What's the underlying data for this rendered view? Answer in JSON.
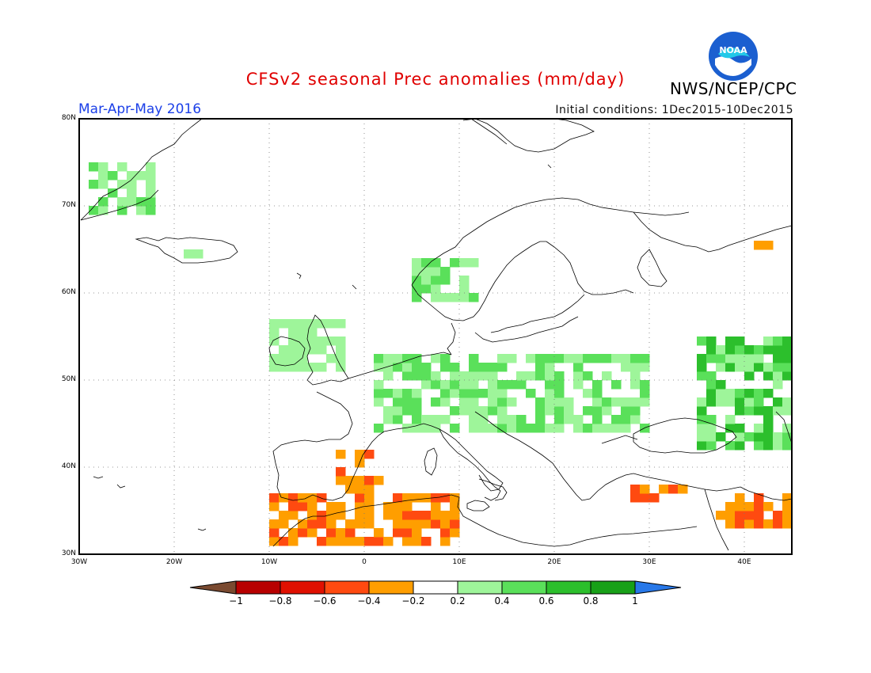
{
  "title": "CFSv2 seasonal Prec anomalies (mm/day)",
  "season": "Mar-Apr-May 2016",
  "initial_conditions": "Initial conditions: 1Dec2015-10Dec2015",
  "agency": "NWS/NCEP/CPC",
  "logo_text": "NOAA",
  "map": {
    "lon_range": [
      -30,
      45
    ],
    "lat_range": [
      30,
      80
    ],
    "lat_labels": [
      "80N",
      "70N",
      "60N",
      "50N",
      "40N",
      "30N"
    ],
    "lon_labels": [
      "30W",
      "20W",
      "10W",
      "0",
      "10E",
      "20E",
      "30E",
      "40E"
    ],
    "grid": "dotted, every 10 degrees"
  },
  "colorbar": {
    "labels": [
      "-1",
      "-0.8",
      "-0.6",
      "-0.4",
      "-0.2",
      "0.2",
      "0.4",
      "0.6",
      "0.8",
      "1"
    ],
    "colors": [
      "#7a4a30",
      "#b80000",
      "#e01000",
      "#ff4a10",
      "#ff9e00",
      "#ffffff",
      "#9ef59a",
      "#5ae05a",
      "#2cbf2c",
      "#18a018",
      "#2878e8"
    ],
    "bins": [
      "< -1",
      "-1 to -0.8",
      "-0.8 to -0.6",
      "-0.6 to -0.4",
      "-0.4 to -0.2",
      "-0.2 to 0.2",
      "0.2 to 0.4",
      "0.4 to 0.6",
      "0.6 to 0.8",
      "0.8 to 1",
      "> 1"
    ]
  },
  "anomaly_regions": [
    {
      "area": "Greenland east coast",
      "lon": [
        -29,
        -22
      ],
      "lat": [
        69,
        75
      ],
      "class": "0.2 to 0.6"
    },
    {
      "area": "Iceland",
      "lon": [
        -20,
        -17
      ],
      "lat": [
        64,
        65
      ],
      "class": "0.2 to 0.4"
    },
    {
      "area": "Western Norway",
      "lon": [
        5,
        12
      ],
      "lat": [
        59,
        64
      ],
      "class": "0.2 to 0.6"
    },
    {
      "area": "Ireland and Scotland",
      "lon": [
        -10,
        -2
      ],
      "lat": [
        51,
        57
      ],
      "class": "0.2 to 0.4"
    },
    {
      "area": "Central Europe",
      "lon": [
        1,
        30
      ],
      "lat": [
        44,
        53
      ],
      "class": "0.2 to 0.6"
    },
    {
      "area": "Western Russia / Caucasus",
      "lon": [
        35,
        45
      ],
      "lat": [
        42,
        55
      ],
      "class": "0.2 to 0.8"
    },
    {
      "area": "North-east Russia",
      "lon": [
        41,
        45
      ],
      "lat": [
        65,
        66
      ],
      "class": "-0.4 to -0.2"
    },
    {
      "area": "North Africa / Morocco",
      "lon": [
        -10,
        10
      ],
      "lat": [
        31,
        37
      ],
      "class": "-0.6 to -0.2"
    },
    {
      "area": "Eastern Spain",
      "lon": [
        -3,
        2
      ],
      "lat": [
        37,
        42
      ],
      "class": "-0.6 to -0.2"
    },
    {
      "area": "Southern Turkey / Cyprus",
      "lon": [
        27,
        34
      ],
      "lat": [
        36,
        38
      ],
      "class": "-0.6 to -0.2"
    },
    {
      "area": "Middle East",
      "lon": [
        37,
        45
      ],
      "lat": [
        33,
        37
      ],
      "class": "-0.6 to -0.2"
    }
  ]
}
